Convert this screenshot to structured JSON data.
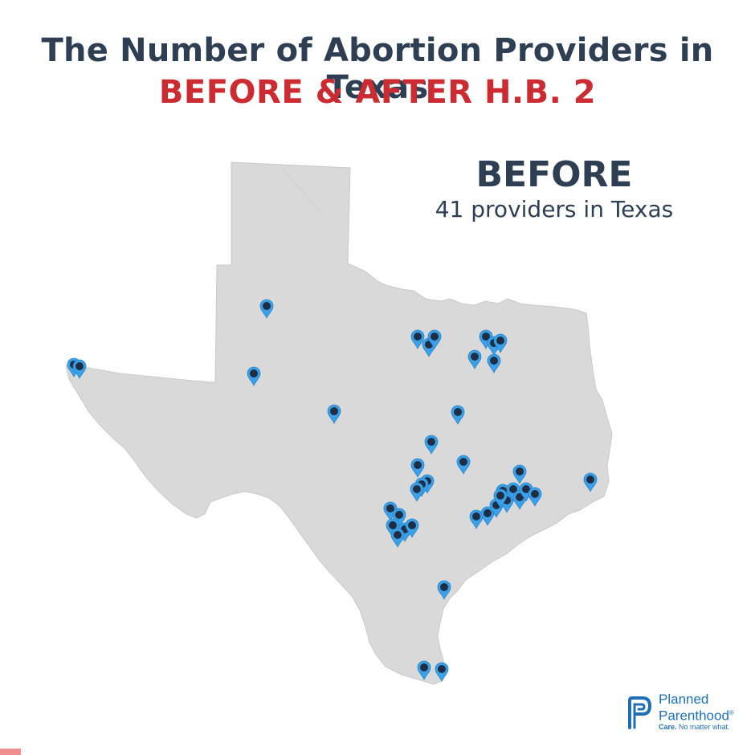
{
  "header": {
    "title": "The Number of Abortion Providers in Texas",
    "subtitle": "BEFORE & AFTER H.B. 2"
  },
  "panel": {
    "label": "BEFORE",
    "count_text": "41 providers in Texas"
  },
  "map": {
    "region": "Texas",
    "land_color": "#d9d9d9",
    "border_color": "#ffffff",
    "marker_color": "#3aa0e8",
    "marker_dot_color": "#1e2f45",
    "marker_icon": "map-pin-icon",
    "marker_count": 41
  },
  "logo": {
    "name_line1": "Planned",
    "name_line2": "Parenthood",
    "registered": "®",
    "tagline_bold": "Care.",
    "tagline_rest": " No matter what.",
    "brand_color": "#1f6fb5"
  },
  "colors": {
    "title": "#2e3f53",
    "subtitle": "#cc2b31"
  }
}
